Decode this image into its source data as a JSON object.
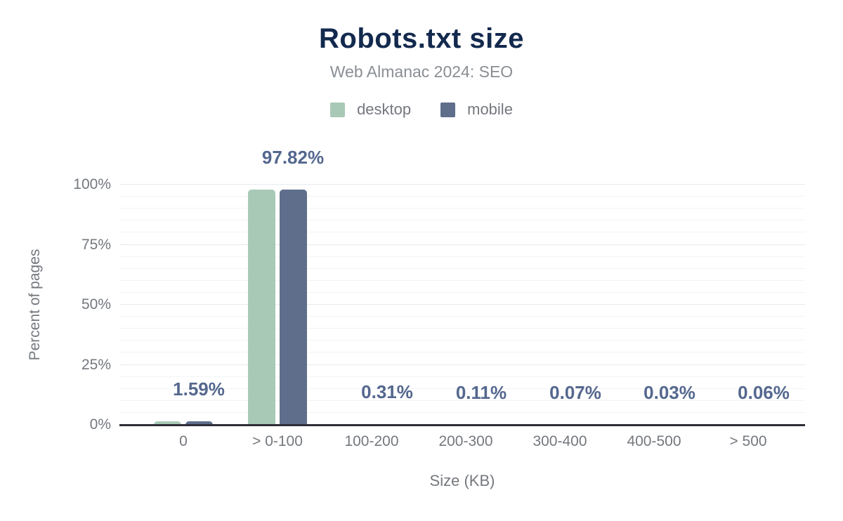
{
  "header": {
    "title": "Robots.txt size",
    "subtitle": "Web Almanac 2024: SEO"
  },
  "legend": [
    {
      "label": "desktop",
      "color": "#a9c9b7"
    },
    {
      "label": "mobile",
      "color": "#5e6e8b"
    }
  ],
  "chart_data": {
    "type": "bar",
    "title": "Robots.txt size",
    "subtitle": "Web Almanac 2024: SEO",
    "categories": [
      "0",
      "> 0-100",
      "100-200",
      "200-300",
      "300-400",
      "400-500",
      "> 500"
    ],
    "series": [
      {
        "name": "desktop",
        "color": "#a9c9b7",
        "values": [
          1.59,
          97.82,
          0.31,
          0.11,
          0.07,
          0.03,
          0.06
        ]
      },
      {
        "name": "mobile",
        "color": "#5e6e8b",
        "values": [
          1.59,
          97.82,
          0.31,
          0.11,
          0.07,
          0.03,
          0.06
        ]
      }
    ],
    "data_labels": [
      "1.59%",
      "97.82%",
      "0.31%",
      "0.11%",
      "0.07%",
      "0.03%",
      "0.06%"
    ],
    "data_labels_series": "mobile",
    "xlabel": "Size (KB)",
    "ylabel": "Percent of pages",
    "ylim": [
      0,
      100
    ],
    "yticks": [
      {
        "label": "0%",
        "value": 0
      },
      {
        "label": "25%",
        "value": 25
      },
      {
        "label": "50%",
        "value": 50
      },
      {
        "label": "75%",
        "value": 75
      },
      {
        "label": "100%",
        "value": 100
      }
    ],
    "grid": {
      "orientation": "horizontal",
      "minor_step": 5,
      "major_step": 25
    },
    "legend_position": "top-center"
  },
  "colors": {
    "title": "#132a4e",
    "subtitle": "#8a8e94",
    "axis_text": "#74787e",
    "data_label": "#54678e",
    "axis_line": "#2e2e36",
    "grid_major": "#e8e9ed",
    "grid_minor": "#f3f4f6",
    "background": "#ffffff"
  }
}
